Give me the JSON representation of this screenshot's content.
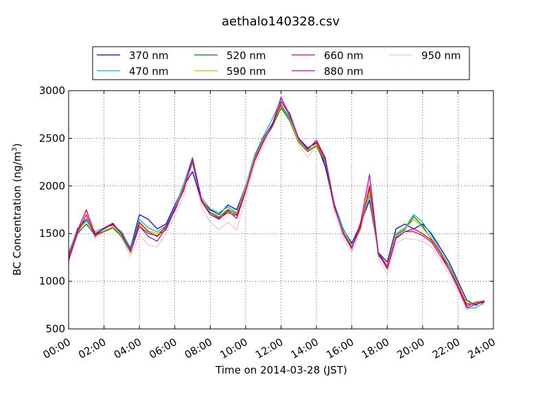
{
  "chart_data": {
    "type": "line",
    "title": "aethalo140328.csv",
    "xlabel": "Time on 2014-03-28 (JST)",
    "ylabel_main": "BC Concentration (ng/m",
    "ylabel_sup": "3",
    "ylabel_end": ")",
    "ylim": [
      500,
      3000
    ],
    "xlim_hours": [
      0,
      24
    ],
    "grid": true,
    "legend_position": "top",
    "x_tick_labels": [
      "00:00",
      "02:00",
      "04:00",
      "06:00",
      "08:00",
      "10:00",
      "12:00",
      "14:00",
      "16:00",
      "18:00",
      "20:00",
      "22:00",
      "24:00"
    ],
    "y_tick_labels": [
      "500",
      "1000",
      "1500",
      "2000",
      "2500",
      "3000"
    ],
    "x_hours": [
      0,
      0.5,
      1,
      1.5,
      2,
      2.5,
      3,
      3.5,
      4,
      4.5,
      5,
      5.5,
      6,
      6.5,
      7,
      7.5,
      8,
      8.5,
      9,
      9.5,
      10,
      10.5,
      11,
      11.5,
      12,
      12.5,
      13,
      13.5,
      14,
      14.5,
      15,
      15.5,
      16,
      16.5,
      17,
      17.5,
      18,
      18.5,
      19,
      19.5,
      20,
      20.5,
      21,
      21.5,
      22,
      22.5,
      23,
      23.5
    ],
    "series": [
      {
        "name": "370 nm",
        "color": "#0000ff",
        "values": [
          1280,
          1550,
          1650,
          1500,
          1550,
          1600,
          1500,
          1350,
          1700,
          1650,
          1550,
          1600,
          1800,
          2000,
          2150,
          1850,
          1750,
          1700,
          1800,
          1750,
          2000,
          2300,
          2500,
          2650,
          2850,
          2700,
          2500,
          2400,
          2450,
          2200,
          1800,
          1550,
          1400,
          1600,
          1850,
          1300,
          1200,
          1550,
          1600,
          1550,
          1600,
          1500,
          1350,
          1200,
          1000,
          800,
          750,
          800
        ]
      },
      {
        "name": "470 nm",
        "color": "#00bfbf",
        "values": [
          1300,
          1540,
          1640,
          1520,
          1560,
          1590,
          1520,
          1340,
          1650,
          1560,
          1520,
          1580,
          1780,
          2020,
          2300,
          1880,
          1760,
          1720,
          1780,
          1720,
          2000,
          2320,
          2520,
          2700,
          2900,
          2720,
          2480,
          2380,
          2480,
          2300,
          1820,
          1560,
          1380,
          1580,
          1900,
          1290,
          1170,
          1500,
          1560,
          1700,
          1620,
          1480,
          1320,
          1170,
          980,
          720,
          720,
          780
        ]
      },
      {
        "name": "520 nm",
        "color": "#008000",
        "values": [
          1250,
          1500,
          1600,
          1480,
          1520,
          1560,
          1470,
          1300,
          1580,
          1500,
          1480,
          1540,
          1750,
          1980,
          2250,
          1850,
          1720,
          1670,
          1750,
          1700,
          1960,
          2280,
          2480,
          2620,
          2820,
          2680,
          2460,
          2360,
          2420,
          2240,
          1780,
          1520,
          1360,
          1560,
          1960,
          1270,
          1160,
          1480,
          1540,
          1680,
          1580,
          1440,
          1300,
          1150,
          960,
          760,
          760,
          790
        ]
      },
      {
        "name": "590 nm",
        "color": "#bfbf00",
        "values": [
          1260,
          1520,
          1630,
          1490,
          1530,
          1570,
          1490,
          1310,
          1600,
          1530,
          1500,
          1560,
          1760,
          1990,
          2270,
          1860,
          1730,
          1680,
          1760,
          1710,
          1980,
          2290,
          2490,
          2640,
          2840,
          2690,
          2470,
          2370,
          2440,
          2260,
          1790,
          1530,
          1370,
          1570,
          1940,
          1280,
          1170,
          1490,
          1550,
          1650,
          1560,
          1450,
          1310,
          1160,
          970,
          770,
          770,
          800
        ]
      },
      {
        "name": "660 nm",
        "color": "#ff0000",
        "values": [
          1240,
          1530,
          1750,
          1490,
          1560,
          1590,
          1500,
          1320,
          1620,
          1520,
          1470,
          1580,
          1740,
          1970,
          2290,
          1860,
          1700,
          1660,
          1720,
          1690,
          1950,
          2270,
          2470,
          2630,
          2880,
          2760,
          2490,
          2390,
          2460,
          2270,
          1790,
          1510,
          1350,
          1580,
          2000,
          1300,
          1150,
          1460,
          1520,
          1550,
          1500,
          1430,
          1300,
          1120,
          950,
          740,
          780,
          790
        ]
      },
      {
        "name": "880 nm",
        "color": "#bf00bf",
        "values": [
          1220,
          1510,
          1700,
          1470,
          1560,
          1610,
          1490,
          1330,
          1580,
          1470,
          1420,
          1560,
          1760,
          1950,
          2280,
          1840,
          1700,
          1650,
          1740,
          1660,
          1940,
          2260,
          2460,
          2640,
          2930,
          2740,
          2500,
          2380,
          2480,
          2290,
          1810,
          1500,
          1340,
          1620,
          2120,
          1290,
          1130,
          1450,
          1520,
          1520,
          1480,
          1410,
          1270,
          1120,
          930,
          720,
          760,
          780
        ]
      },
      {
        "name": "950 nm",
        "color": "#ffc0cb",
        "values": [
          1200,
          1480,
          1680,
          1450,
          1520,
          1570,
          1450,
          1260,
          1490,
          1380,
          1360,
          1500,
          1690,
          1900,
          2220,
          1780,
          1620,
          1540,
          1620,
          1540,
          1880,
          2220,
          2420,
          2610,
          2860,
          2670,
          2430,
          2300,
          2420,
          2220,
          1740,
          1460,
          1300,
          1540,
          2040,
          1240,
          1080,
          1400,
          1450,
          1440,
          1420,
          1360,
          1230,
          1080,
          900,
          700,
          740,
          760
        ]
      }
    ]
  }
}
